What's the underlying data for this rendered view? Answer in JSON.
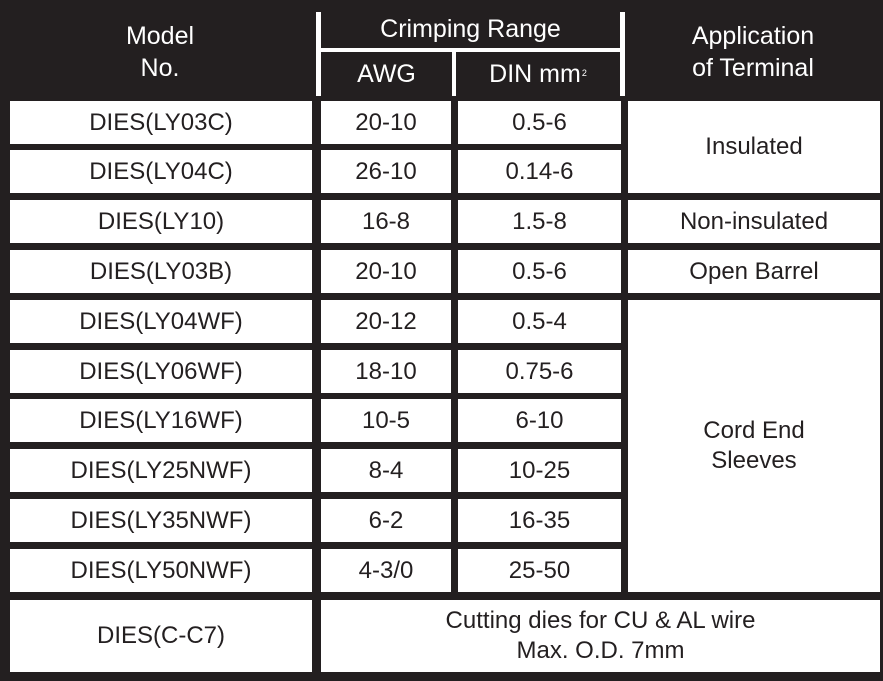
{
  "header": {
    "model_line1": "Model",
    "model_line2": "No.",
    "crimping_range": "Crimping Range",
    "awg": "AWG",
    "din": "DIN mm",
    "din_sup": "2",
    "application_line1": "Application",
    "application_line2": "of Terminal"
  },
  "rows": [
    {
      "model": "DIES(LY03C)",
      "awg": "20-10",
      "din": "0.5-6"
    },
    {
      "model": "DIES(LY04C)",
      "awg": "26-10",
      "din": "0.14-6"
    },
    {
      "model": "DIES(LY10)",
      "awg": "16-8",
      "din": "1.5-8"
    },
    {
      "model": "DIES(LY03B)",
      "awg": "20-10",
      "din": "0.5-6"
    },
    {
      "model": "DIES(LY04WF)",
      "awg": "20-12",
      "din": "0.5-4"
    },
    {
      "model": "DIES(LY06WF)",
      "awg": "18-10",
      "din": "0.75-6"
    },
    {
      "model": "DIES(LY16WF)",
      "awg": "10-5",
      "din": "6-10"
    },
    {
      "model": "DIES(LY25NWF)",
      "awg": "8-4",
      "din": "10-25"
    },
    {
      "model": "DIES(LY35NWF)",
      "awg": "6-2",
      "din": "16-35"
    },
    {
      "model": "DIES(LY50NWF)",
      "awg": "4-3/0",
      "din": "25-50"
    }
  ],
  "applications": {
    "insulated": "Insulated",
    "non_insulated": "Non-insulated",
    "open_barrel": "Open Barrel",
    "cord_end_line1": "Cord End",
    "cord_end_line2": "Sleeves"
  },
  "last_row": {
    "model": "DIES(C-C7)",
    "note_line1": "Cutting dies for CU & AL wire",
    "note_line2": "Max. O.D. 7mm"
  }
}
